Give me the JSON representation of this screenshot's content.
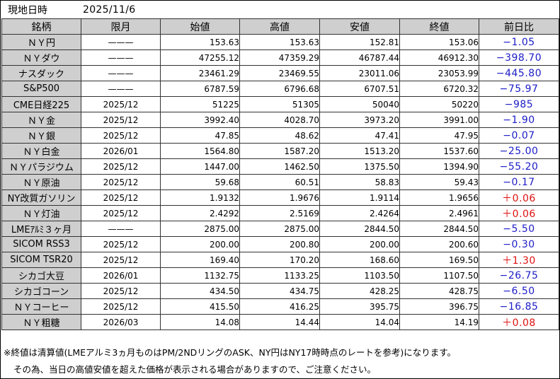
{
  "header": {
    "label": "現地日時",
    "date": "2025/11/6"
  },
  "columns": [
    "銘柄",
    "限月",
    "始値",
    "高値",
    "安値",
    "終値",
    "前日比"
  ],
  "rows": [
    {
      "name": "ＮＹ円",
      "month": "———",
      "open": "153.63",
      "high": "153.63",
      "low": "152.81",
      "close": "153.06",
      "change": "−1.05",
      "dir": "down"
    },
    {
      "name": "ＮＹダウ",
      "month": "———",
      "open": "47255.12",
      "high": "47359.29",
      "low": "46787.44",
      "close": "46912.30",
      "change": "−398.70",
      "dir": "down"
    },
    {
      "name": "ナスダック",
      "month": "———",
      "open": "23461.29",
      "high": "23469.55",
      "low": "23011.06",
      "close": "23053.99",
      "change": "−445.80",
      "dir": "down"
    },
    {
      "name": "S&P500",
      "month": "———",
      "open": "6787.59",
      "high": "6796.68",
      "low": "6707.51",
      "close": "6720.32",
      "change": "−75.97",
      "dir": "down"
    },
    {
      "name": "CME日経225",
      "month": "2025/12",
      "open": "51225",
      "high": "51305",
      "low": "50040",
      "close": "50220",
      "change": "−985",
      "dir": "down"
    },
    {
      "name": "ＮＹ金",
      "month": "2025/12",
      "open": "3992.40",
      "high": "4028.70",
      "low": "3973.20",
      "close": "3991.00",
      "change": "−1.90",
      "dir": "down"
    },
    {
      "name": "ＮＹ銀",
      "month": "2025/12",
      "open": "47.85",
      "high": "48.62",
      "low": "47.41",
      "close": "47.95",
      "change": "−0.07",
      "dir": "down"
    },
    {
      "name": "ＮＹ白金",
      "month": "2026/01",
      "open": "1564.80",
      "high": "1587.20",
      "low": "1513.20",
      "close": "1537.60",
      "change": "−25.00",
      "dir": "down"
    },
    {
      "name": "ＮＹパラジウム",
      "month": "2025/12",
      "open": "1447.00",
      "high": "1462.50",
      "low": "1375.50",
      "close": "1394.90",
      "change": "−55.20",
      "dir": "down"
    },
    {
      "name": "ＮＹ原油",
      "month": "2025/12",
      "open": "59.68",
      "high": "60.51",
      "low": "58.83",
      "close": "59.43",
      "change": "−0.17",
      "dir": "down"
    },
    {
      "name": "NY改質ガソリン",
      "month": "2025/12",
      "open": "1.9132",
      "high": "1.9676",
      "low": "1.9114",
      "close": "1.9656",
      "change": "＋0.06",
      "dir": "up"
    },
    {
      "name": "ＮＹ灯油",
      "month": "2025/12",
      "open": "2.4292",
      "high": "2.5169",
      "low": "2.4264",
      "close": "2.4961",
      "change": "＋0.06",
      "dir": "up"
    },
    {
      "name": "LMEｱﾙﾐ３ヶ月",
      "month": "———",
      "open": "2875.00",
      "high": "2875.00",
      "low": "2844.50",
      "close": "2844.50",
      "change": "−5.50",
      "dir": "down"
    },
    {
      "name": "SICOM RSS3",
      "month": "2025/12",
      "open": "200.00",
      "high": "200.80",
      "low": "200.00",
      "close": "200.60",
      "change": "−0.30",
      "dir": "down"
    },
    {
      "name": "SICOM TSR20",
      "month": "2025/12",
      "open": "169.40",
      "high": "170.20",
      "low": "168.60",
      "close": "169.50",
      "change": "＋1.30",
      "dir": "up"
    },
    {
      "name": "シカゴ大豆",
      "month": "2026/01",
      "open": "1132.75",
      "high": "1133.25",
      "low": "1103.50",
      "close": "1107.50",
      "change": "−26.75",
      "dir": "down"
    },
    {
      "name": "シカゴコーン",
      "month": "2025/12",
      "open": "434.50",
      "high": "434.75",
      "low": "428.25",
      "close": "428.75",
      "change": "−6.50",
      "dir": "down"
    },
    {
      "name": "ＮＹコーヒー",
      "month": "2025/12",
      "open": "415.50",
      "high": "416.25",
      "low": "395.75",
      "close": "396.75",
      "change": "−16.85",
      "dir": "down"
    },
    {
      "name": "ＮＹ粗糖",
      "month": "2026/03",
      "open": "14.08",
      "high": "14.44",
      "low": "14.04",
      "close": "14.19",
      "change": "＋0.08",
      "dir": "up"
    }
  ],
  "notes": [
    "※終値は清算値(LMEアルミ3ヵ月ものはPM/2NDリングのASK、NY円はNY17時時点のレートを参考)になります。",
    "その為、当日の高値安値を超えた価格が表示される場合がありますので、ご注意ください。"
  ],
  "colors": {
    "header_bg": "#cfcfcf",
    "down": "#1c1cc8",
    "up": "#e01010"
  }
}
